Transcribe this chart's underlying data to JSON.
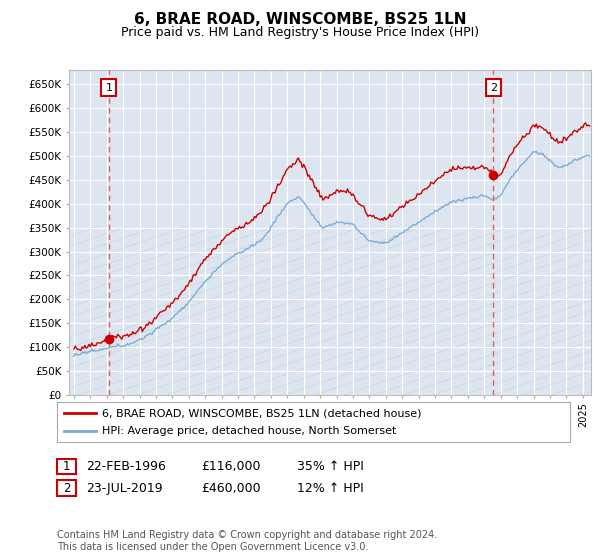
{
  "title": "6, BRAE ROAD, WINSCOMBE, BS25 1LN",
  "subtitle": "Price paid vs. HM Land Registry's House Price Index (HPI)",
  "ylabel_ticks": [
    "£0",
    "£50K",
    "£100K",
    "£150K",
    "£200K",
    "£250K",
    "£300K",
    "£350K",
    "£400K",
    "£450K",
    "£500K",
    "£550K",
    "£600K",
    "£650K"
  ],
  "ytick_values": [
    0,
    50000,
    100000,
    150000,
    200000,
    250000,
    300000,
    350000,
    400000,
    450000,
    500000,
    550000,
    600000,
    650000
  ],
  "ylim": [
    0,
    680000
  ],
  "xlim_start": 1993.7,
  "xlim_end": 2025.5,
  "sale1_date": 1996.13,
  "sale1_price": 116000,
  "sale2_date": 2019.55,
  "sale2_price": 460000,
  "legend_line1": "6, BRAE ROAD, WINSCOMBE, BS25 1LN (detached house)",
  "legend_line2": "HPI: Average price, detached house, North Somerset",
  "note1_label": "1",
  "note1_date": "22-FEB-1996",
  "note1_price": "£116,000",
  "note1_hpi": "35% ↑ HPI",
  "note2_label": "2",
  "note2_date": "23-JUL-2019",
  "note2_price": "£460,000",
  "note2_hpi": "12% ↑ HPI",
  "copyright": "Contains HM Land Registry data © Crown copyright and database right 2024.\nThis data is licensed under the Open Government Licence v3.0.",
  "bg_color": "#dde6f0",
  "line_color_red": "#cc0000",
  "line_color_blue": "#7aaad0",
  "sale_marker_color": "#cc0000",
  "dashed_line_color": "#e06060",
  "grid_color": "#ffffff",
  "hatch_line_color": "#c8d4e4"
}
